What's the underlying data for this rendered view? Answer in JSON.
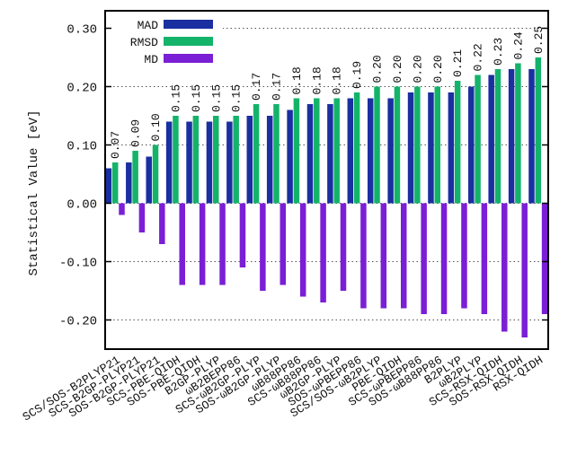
{
  "chart_data": {
    "type": "bar",
    "ylabel": "Statistical Value [eV]",
    "ylim": [
      -0.25,
      0.33
    ],
    "yticks": [
      -0.2,
      -0.1,
      0.0,
      0.1,
      0.2,
      0.3
    ],
    "ytick_labels": [
      "-0.20",
      "-0.10",
      "0.00",
      "0.10",
      "0.20",
      "0.30"
    ],
    "grid": "horizontal dotted",
    "legend_position": "top-left",
    "categories": [
      "SCS/SOS-B2PLYP21",
      "SCS-B2GP-PLYP21",
      "SOS-B2GP-PLYP21",
      "SCS-PBE-QIDH",
      "SOS-PBE-QIDH",
      "B2GP-PLYP",
      "ωB2BEPP86",
      "SCS-ωB2GP-PLYP",
      "SOS-ωB2GP-PLYP",
      "ωB88PP86",
      "SCS-ωB88PP86",
      "ωB2GP-PLYP",
      "SOS-ωPBEPP86",
      "SCS/SOS-ωB2PLYP",
      "PBE-QIDH",
      "SCS-ωPBEPP86",
      "SOS-ωB88PP86",
      "B2PLYP",
      "ωB2PLYP",
      "SCS-RSX-QIDH",
      "SOS-RSX-QIDH",
      "RSX-QIDH"
    ],
    "series": [
      {
        "name": "MAD",
        "color": "#1a2fa0",
        "values": [
          0.06,
          0.07,
          0.08,
          0.14,
          0.14,
          0.14,
          0.14,
          0.15,
          0.15,
          0.16,
          0.17,
          0.17,
          0.18,
          0.18,
          0.18,
          0.19,
          0.19,
          0.19,
          0.2,
          0.22,
          0.23,
          0.23
        ]
      },
      {
        "name": "RMSD",
        "color": "#14b36a",
        "values": [
          0.07,
          0.09,
          0.1,
          0.15,
          0.15,
          0.15,
          0.15,
          0.17,
          0.17,
          0.18,
          0.18,
          0.18,
          0.19,
          0.2,
          0.2,
          0.2,
          0.2,
          0.21,
          0.22,
          0.23,
          0.24,
          0.25
        ]
      },
      {
        "name": "MD",
        "color": "#7a1fd6",
        "values": [
          -0.02,
          -0.05,
          -0.07,
          -0.14,
          -0.14,
          -0.14,
          -0.11,
          -0.15,
          -0.14,
          -0.16,
          -0.17,
          -0.15,
          -0.18,
          -0.18,
          -0.18,
          -0.19,
          -0.19,
          -0.18,
          -0.19,
          -0.22,
          -0.23,
          -0.19
        ]
      }
    ],
    "data_labels": [
      "0.07",
      "0.09",
      "0.10",
      "0.15",
      "0.15",
      "0.15",
      "0.15",
      "0.17",
      "0.17",
      "0.18",
      "0.18",
      "0.18",
      "0.19",
      "0.20",
      "0.20",
      "0.20",
      "0.20",
      "0.21",
      "0.22",
      "0.23",
      "0.24",
      "0.25"
    ]
  }
}
